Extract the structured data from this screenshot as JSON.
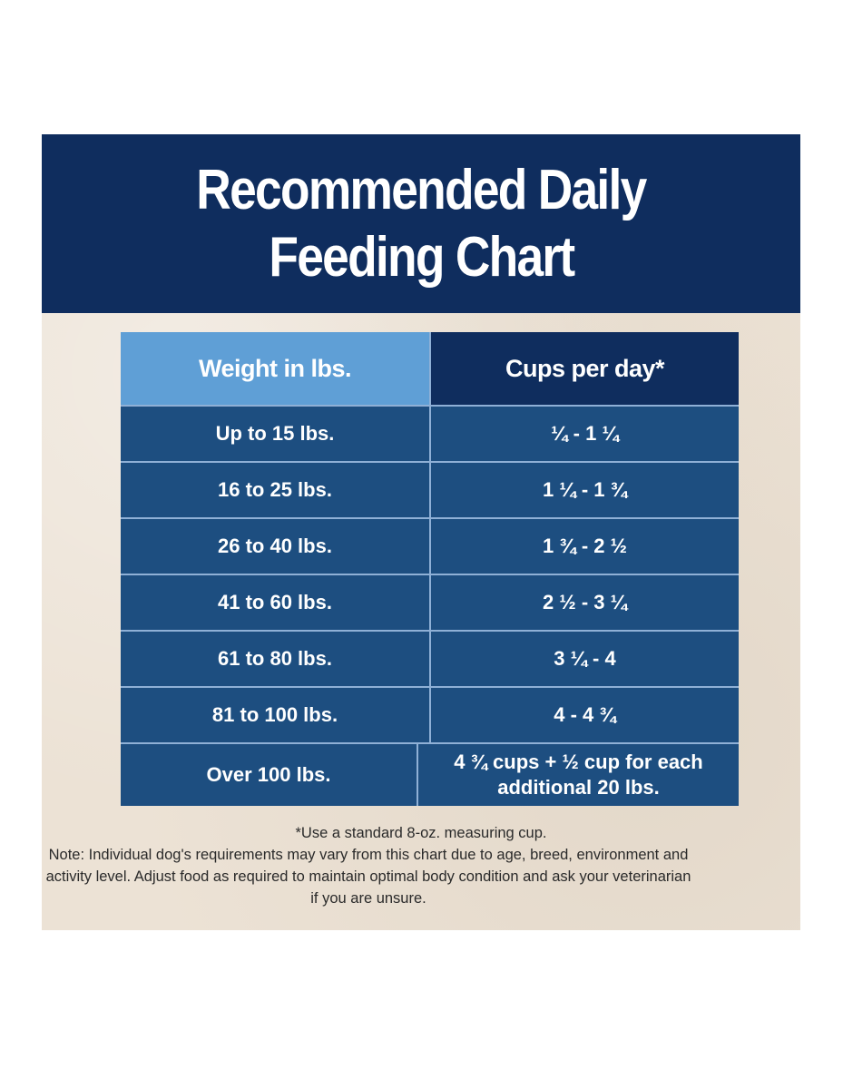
{
  "header": {
    "title_line1": "Recommended Daily",
    "title_line2": "Feeding Chart"
  },
  "table": {
    "columns": [
      "Weight in lbs.",
      "Cups per day*"
    ],
    "rows": [
      {
        "weight": "Up to 15 lbs.",
        "cups": "¼ - 1 ¼"
      },
      {
        "weight": "16 to 25 lbs.",
        "cups": "1 ¼ - 1 ¾"
      },
      {
        "weight": "26 to 40 lbs.",
        "cups": "1 ¾ - 2 ½"
      },
      {
        "weight": "41 to 60 lbs.",
        "cups": "2 ½ - 3 ¼"
      },
      {
        "weight": "61 to 80 lbs.",
        "cups": "3 ¼ - 4"
      },
      {
        "weight": "81 to 100 lbs.",
        "cups": "4 - 4 ¾"
      },
      {
        "weight": "Over 100 lbs.",
        "cups": "4 ¾ cups + ½ cup for each additional 20 lbs."
      }
    ]
  },
  "footnote": {
    "asterisk_note": "*Use a standard 8-oz. measuring cup.",
    "note": "Note: Individual dog's requirements may vary from this chart due to age, breed, environment and activity level. Adjust food as required to maintain optimal body condition and ask your veterinarian if you are unsure."
  },
  "colors": {
    "header_navy": "#0f2d5e",
    "row_blue": "#1d4e80",
    "weight_header_blue": "#5f9fd6",
    "background_beige": "#ece2d5"
  }
}
